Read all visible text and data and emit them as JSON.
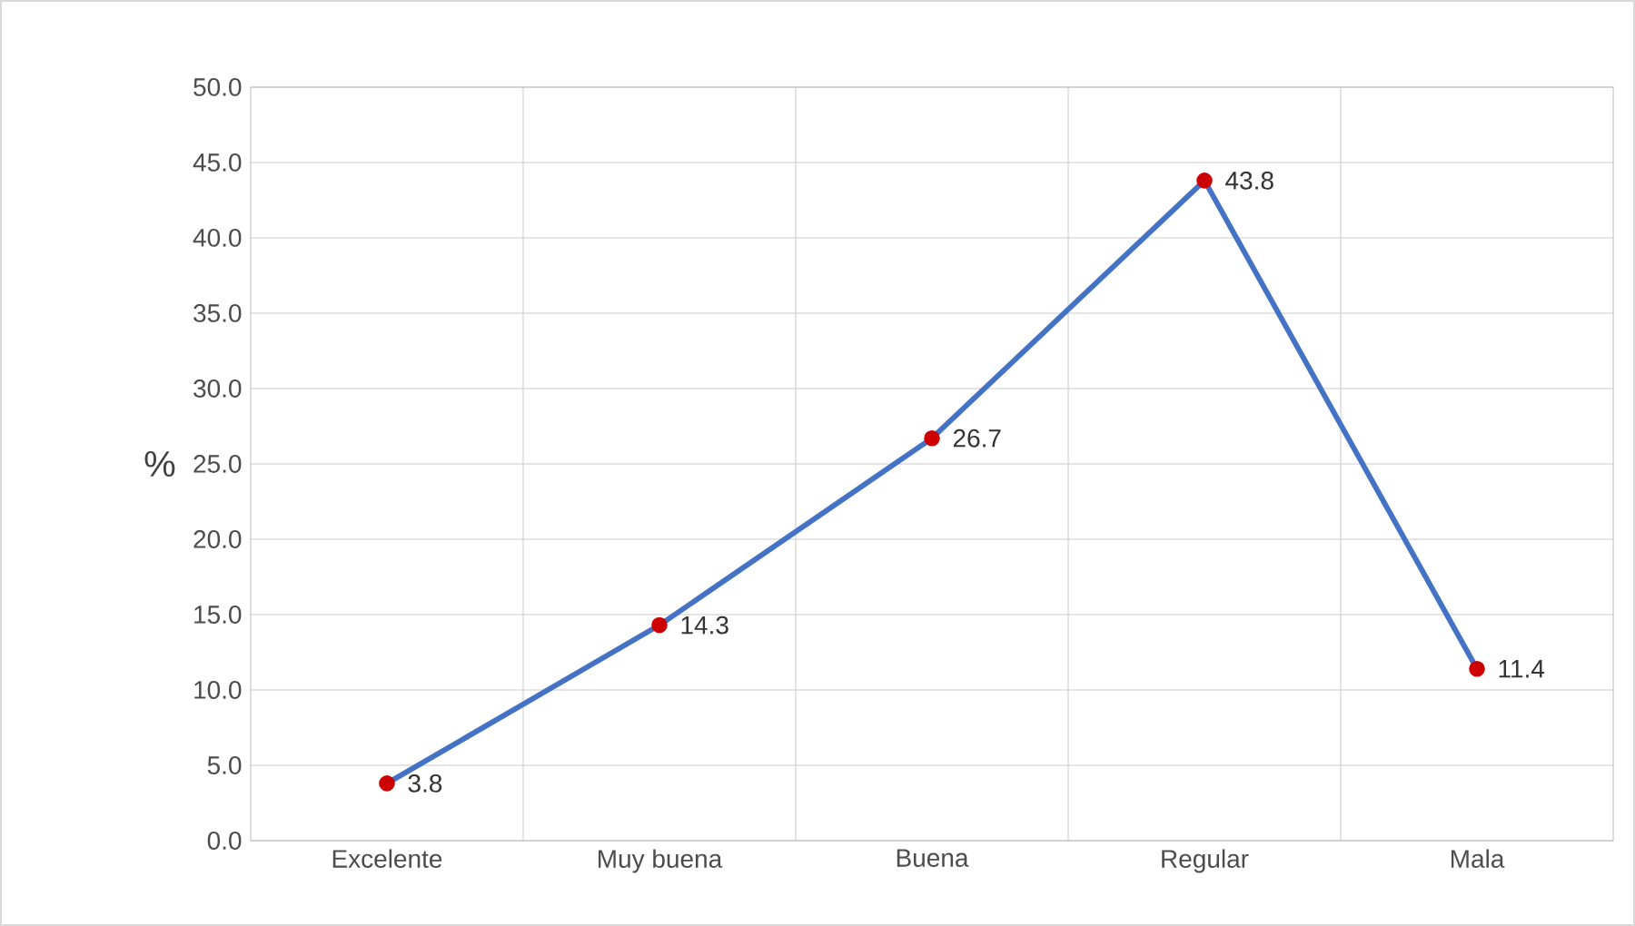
{
  "chart_data": {
    "type": "line",
    "ylabel": "%",
    "categories": [
      "Excelente",
      "Muy buena",
      "Buena",
      "Regular",
      "Mala"
    ],
    "series": [
      {
        "color": "#4472c4",
        "values": [
          3.8,
          14.3,
          26.7,
          43.8,
          11.4
        ]
      }
    ],
    "ylim": [
      0,
      50
    ],
    "yticks": [
      {
        "value": 0,
        "label": "0.0"
      },
      {
        "value": 5,
        "label": "5.0"
      },
      {
        "value": 10,
        "label": "10.0"
      },
      {
        "value": 15,
        "label": "15.0"
      },
      {
        "value": 20,
        "label": "20.0"
      },
      {
        "value": 25,
        "label": "25.0"
      },
      {
        "value": 30,
        "label": "30.0"
      },
      {
        "value": 35,
        "label": "35.0"
      },
      {
        "value": 40,
        "label": "40.0"
      },
      {
        "value": 45,
        "label": "45.0"
      },
      {
        "value": 50,
        "label": "50.0"
      }
    ],
    "grid": true,
    "marker": "circle",
    "line_style": "solid",
    "data_labels": true
  }
}
